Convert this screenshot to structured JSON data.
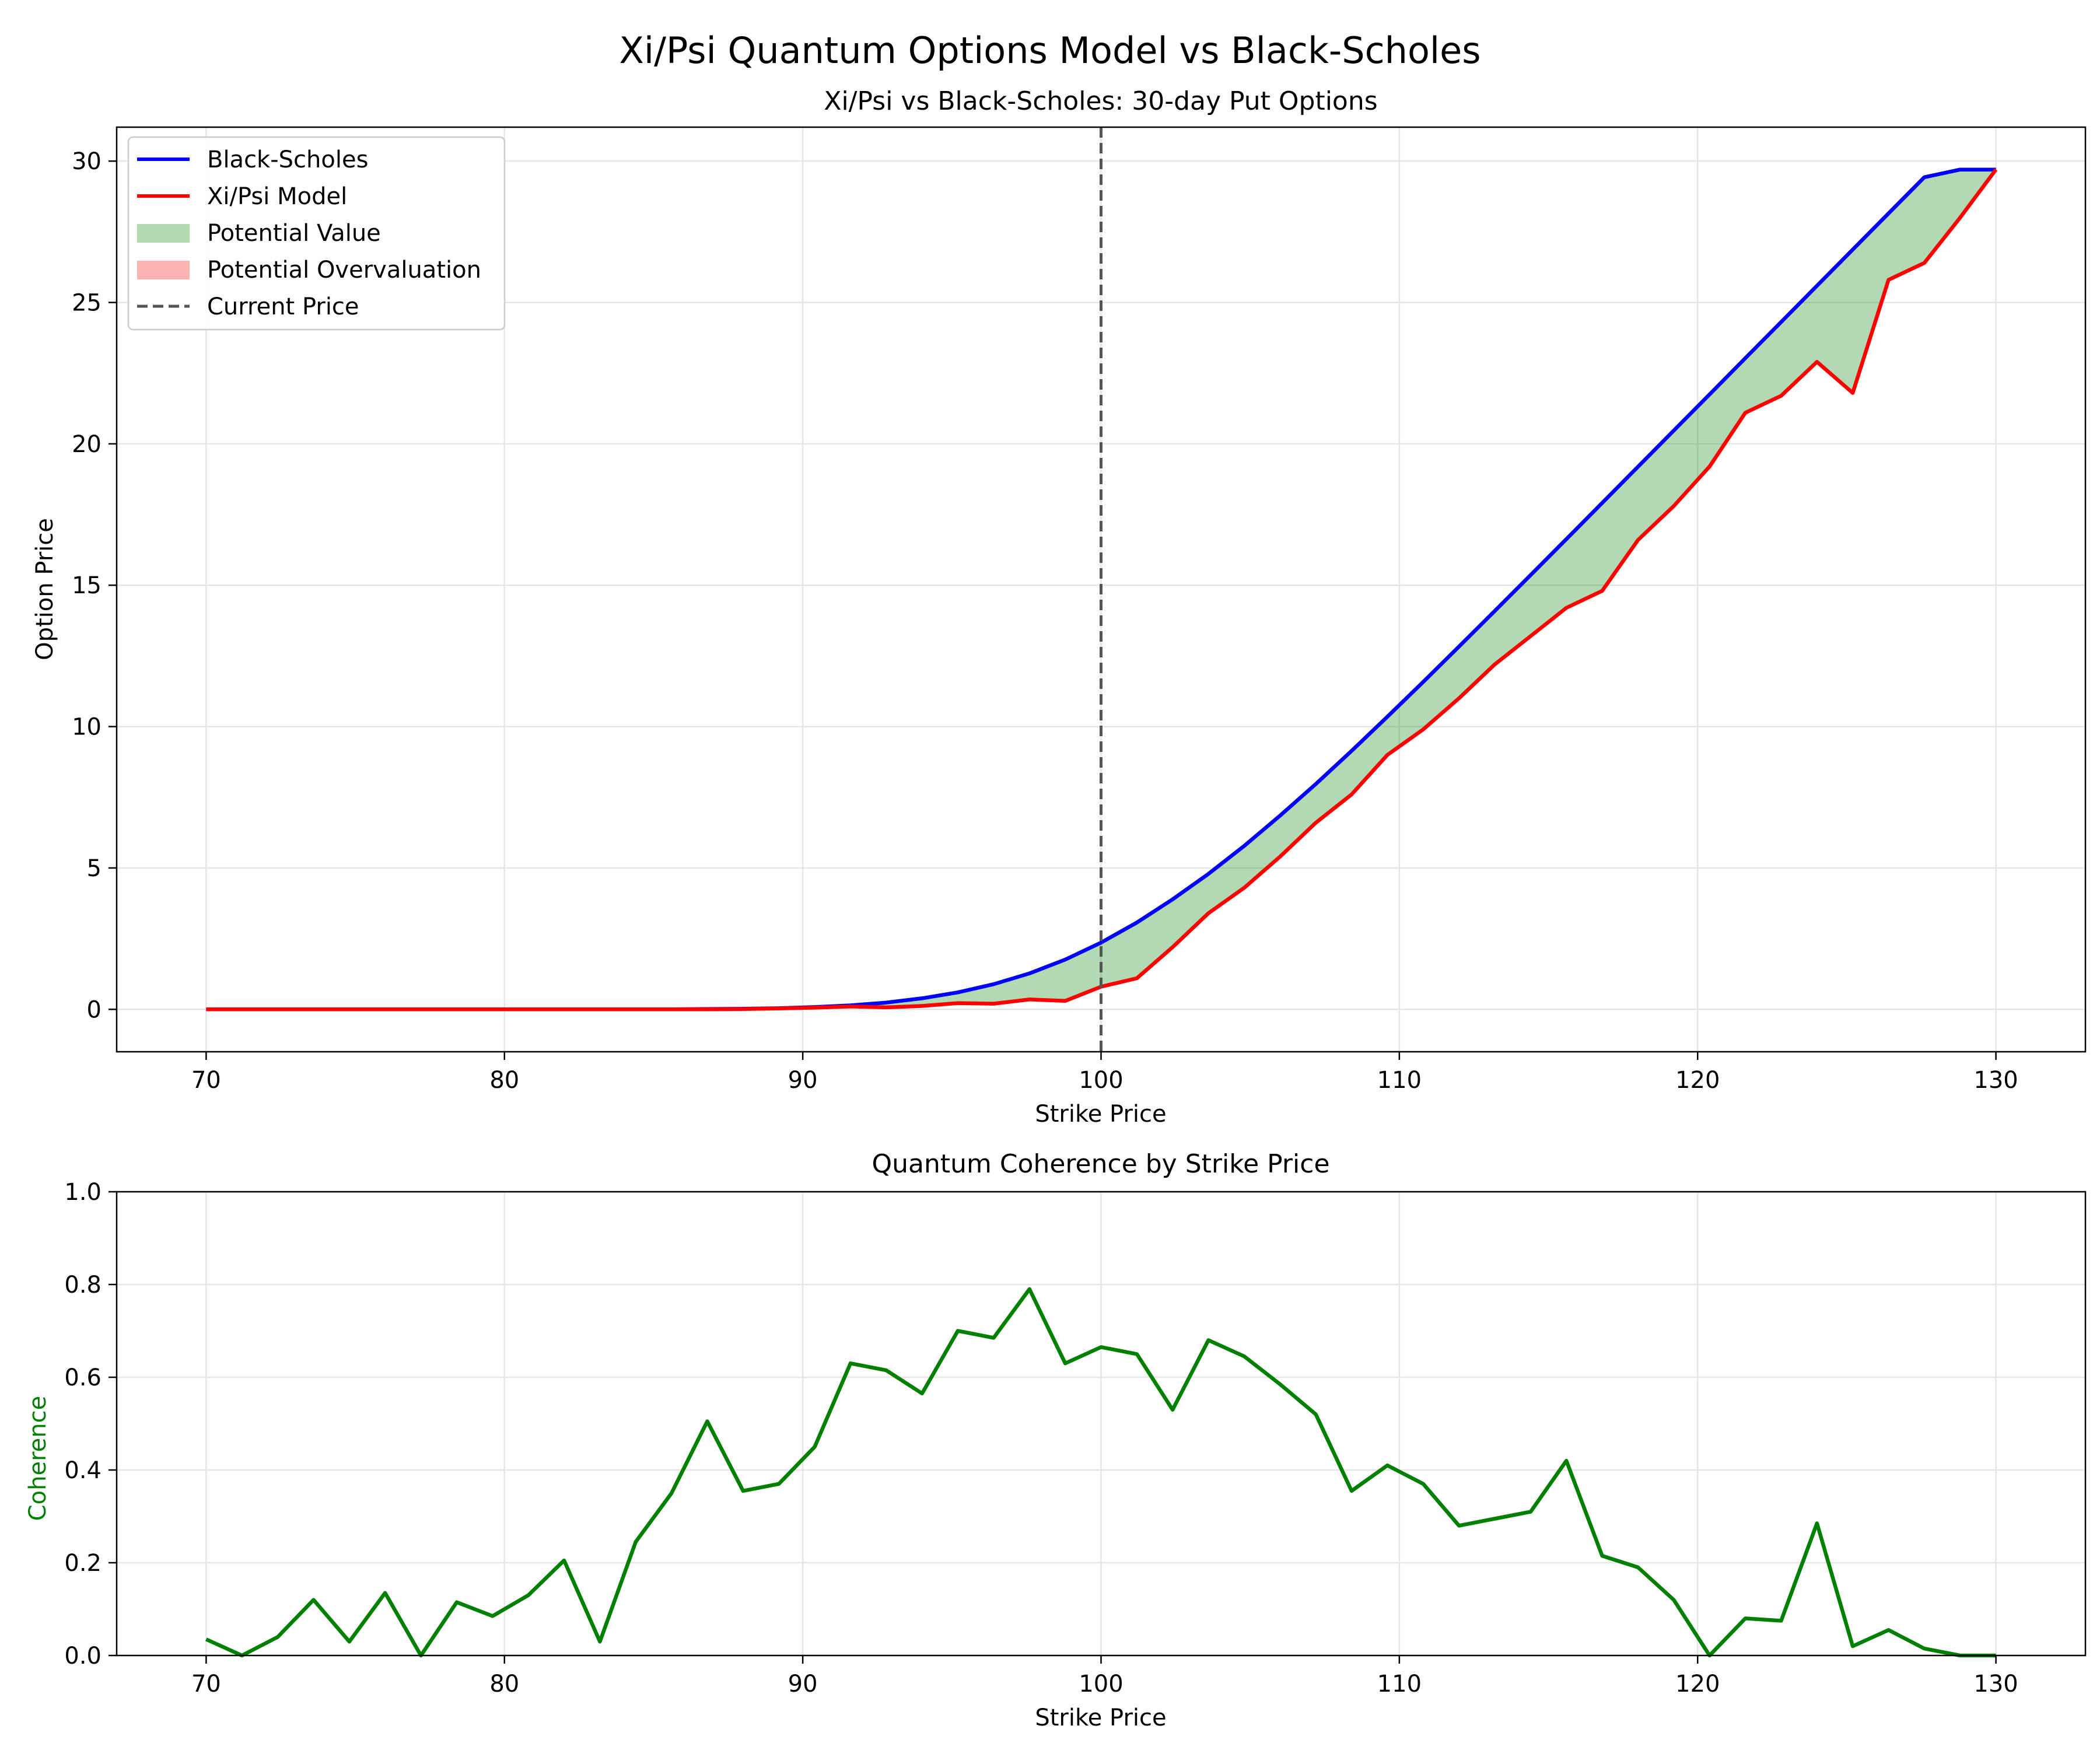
{
  "figure": {
    "suptitle": "Xi/Psi Quantum Options Model vs Black-Scholes"
  },
  "colors": {
    "black_scholes": "#0000ff",
    "xipsi": "#ff0000",
    "potential_value": "#008000",
    "potential_overvaluation": "#ff0000",
    "current_price": "#555555",
    "coherence": "#008000",
    "grid": "#e6e6e6"
  },
  "chart_data": [
    {
      "type": "line",
      "title": "Xi/Psi vs Black-Scholes: 30-day Put Options",
      "xlabel": "Strike Price",
      "ylabel": "Option Price",
      "xlim": [
        67,
        133
      ],
      "ylim": [
        -1.5,
        31.2
      ],
      "xticks": [
        70,
        80,
        90,
        100,
        110,
        120,
        130
      ],
      "yticks": [
        0,
        5,
        10,
        15,
        20,
        25,
        30
      ],
      "grid": true,
      "legend_position": "upper-left",
      "legend": [
        "Black-Scholes",
        "Xi/Psi Model",
        "Potential Value",
        "Potential Overvaluation",
        "Current Price"
      ],
      "current_price": 100,
      "x": [
        70,
        71.2,
        72.4,
        73.6,
        74.8,
        76.0,
        77.2,
        78.4,
        79.6,
        80.8,
        82.0,
        83.2,
        84.4,
        85.6,
        86.8,
        88.0,
        89.2,
        90.4,
        91.6,
        92.8,
        94.0,
        95.2,
        96.4,
        97.6,
        98.8,
        100.0,
        101.2,
        102.4,
        103.6,
        104.8,
        106.0,
        107.2,
        108.4,
        109.6,
        110.8,
        112.0,
        113.2,
        114.4,
        115.6,
        116.8,
        118.0,
        119.2,
        120.4,
        121.6,
        122.8,
        124.0,
        125.2,
        126.4,
        127.6,
        128.8,
        130.0
      ],
      "series": [
        {
          "name": "Black-Scholes",
          "values": [
            0,
            0,
            0,
            0,
            0,
            0,
            0,
            0,
            0,
            0,
            0,
            0,
            0,
            0,
            0.01,
            0.02,
            0.04,
            0.08,
            0.14,
            0.24,
            0.39,
            0.6,
            0.89,
            1.27,
            1.76,
            2.36,
            3.07,
            3.89,
            4.79,
            5.78,
            6.85,
            7.97,
            9.14,
            10.35,
            11.58,
            12.83,
            14.09,
            15.36,
            16.63,
            17.91,
            19.19,
            20.47,
            21.75,
            23.03,
            24.31,
            25.59,
            26.87,
            28.15,
            29.43,
            29.7,
            29.7
          ]
        },
        {
          "name": "Xi/Psi Model",
          "values": [
            0,
            0,
            0,
            0,
            0,
            0,
            0,
            0,
            0,
            0,
            0,
            0,
            0,
            0,
            0,
            0.01,
            0.03,
            0.06,
            0.1,
            0.07,
            0.12,
            0.22,
            0.2,
            0.35,
            0.3,
            0.8,
            1.1,
            2.2,
            3.4,
            4.3,
            5.4,
            6.6,
            7.6,
            9.0,
            9.9,
            11.0,
            12.2,
            13.2,
            14.2,
            14.8,
            16.6,
            17.8,
            19.2,
            21.1,
            21.7,
            22.9,
            21.8,
            25.8,
            26.4,
            28.0,
            29.7
          ]
        }
      ]
    },
    {
      "type": "line",
      "title": "Quantum Coherence by Strike Price",
      "xlabel": "Strike Price",
      "ylabel": "Coherence",
      "xlim": [
        67,
        133
      ],
      "ylim": [
        0,
        1.0
      ],
      "xticks": [
        70,
        80,
        90,
        100,
        110,
        120,
        130
      ],
      "yticks": [
        0.0,
        0.2,
        0.4,
        0.6,
        0.8,
        1.0
      ],
      "ytick_labels": [
        "0.0",
        "0.2",
        "0.4",
        "0.6",
        "0.8",
        "1.0"
      ],
      "grid": true,
      "x": [
        70,
        71.2,
        72.4,
        73.6,
        74.8,
        76.0,
        77.2,
        78.4,
        79.6,
        80.8,
        82.0,
        83.2,
        84.4,
        85.6,
        86.8,
        88.0,
        89.2,
        90.4,
        91.6,
        92.8,
        94.0,
        95.2,
        96.4,
        97.6,
        98.8,
        100.0,
        101.2,
        102.4,
        103.6,
        104.8,
        106.0,
        107.2,
        108.4,
        109.6,
        110.8,
        112.0,
        113.2,
        114.4,
        115.6,
        116.8,
        118.0,
        119.2,
        120.4,
        121.6,
        122.8,
        124.0,
        125.2,
        126.4,
        127.6,
        128.8,
        130.0
      ],
      "series": [
        {
          "name": "Coherence",
          "values": [
            0.035,
            0.0,
            0.04,
            0.12,
            0.03,
            0.135,
            0.0,
            0.115,
            0.085,
            0.13,
            0.205,
            0.03,
            0.245,
            0.35,
            0.505,
            0.355,
            0.37,
            0.45,
            0.63,
            0.615,
            0.565,
            0.7,
            0.685,
            0.79,
            0.63,
            0.665,
            0.65,
            0.53,
            0.68,
            0.645,
            0.585,
            0.52,
            0.355,
            0.41,
            0.37,
            0.28,
            0.295,
            0.31,
            0.42,
            0.215,
            0.19,
            0.12,
            0.0,
            0.08,
            0.075,
            0.285,
            0.02,
            0.055,
            0.015,
            0.0,
            0.0
          ]
        }
      ]
    }
  ]
}
